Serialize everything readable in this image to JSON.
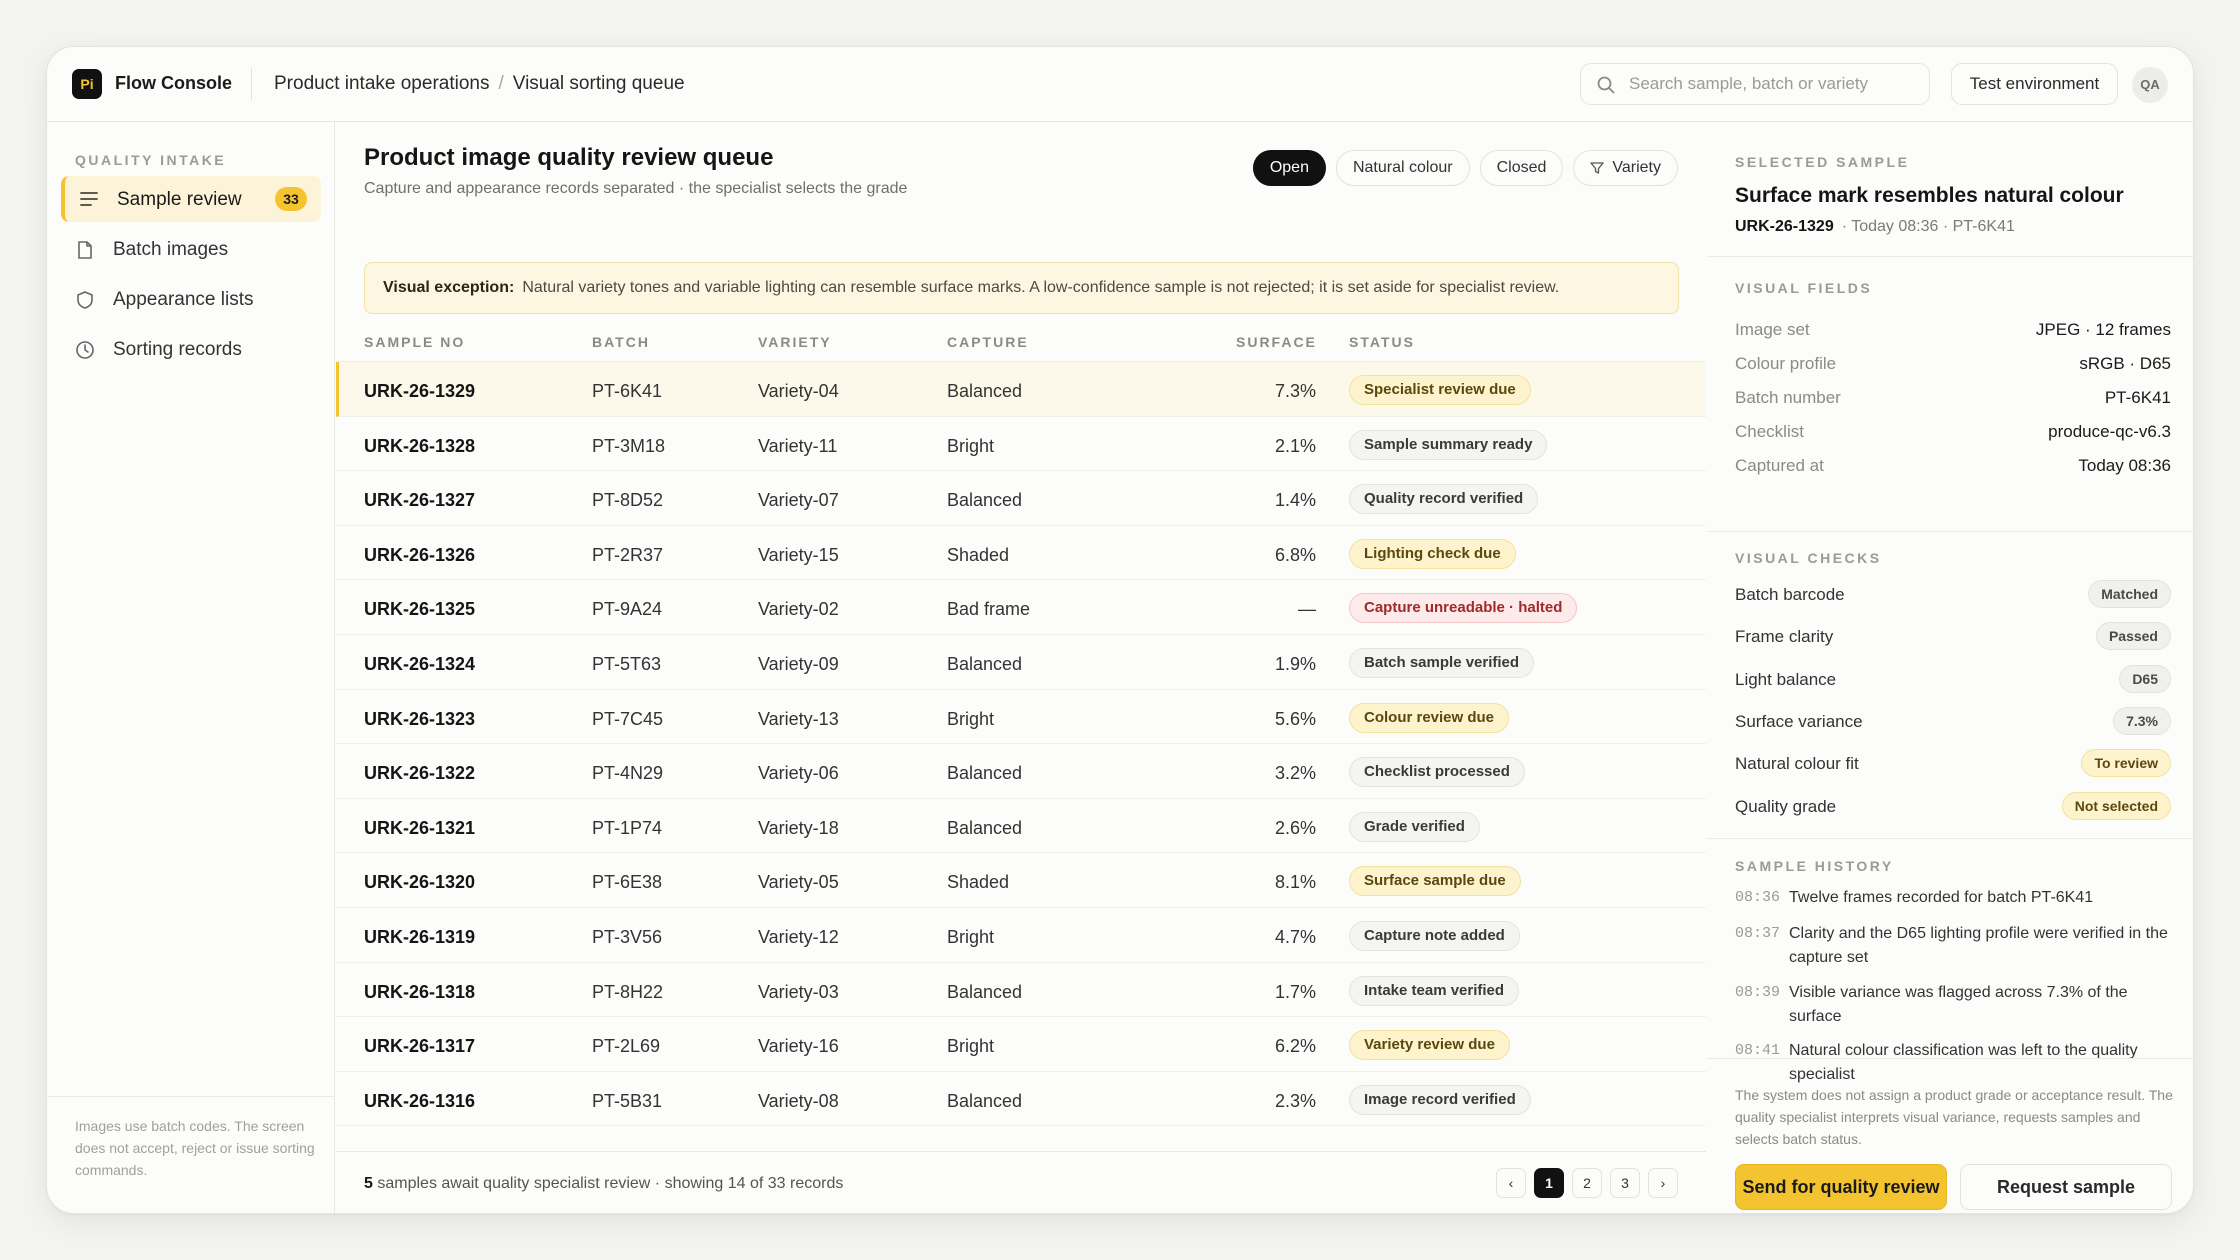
{
  "header": {
    "logo": "Pi",
    "app_title": "Flow Console",
    "breadcrumb": [
      "Product intake operations",
      "Visual sorting queue"
    ],
    "search_placeholder": "Search sample, batch or variety",
    "env_label": "Test environment",
    "avatar": "QA"
  },
  "sidebar": {
    "section": "QUALITY INTAKE",
    "items": [
      {
        "label": "Sample review",
        "badge": "33",
        "icon": "list-icon"
      },
      {
        "label": "Batch images",
        "icon": "document-icon"
      },
      {
        "label": "Appearance lists",
        "icon": "shield-icon"
      },
      {
        "label": "Sorting records",
        "icon": "clock-icon"
      }
    ],
    "note": "Images use batch codes. The screen does not accept, reject or issue sorting commands."
  },
  "main": {
    "title": "Product image quality review queue",
    "subtitle": "Capture and appearance records separated · the specialist selects the grade",
    "filters": [
      "Open",
      "Natural colour",
      "Closed",
      "Variety"
    ],
    "alert_label": "Visual exception:",
    "alert_text": "Natural variety tones and variable lighting can resemble surface marks. A low-confidence sample is not rejected; it is set aside for specialist review.",
    "columns": [
      "SAMPLE NO",
      "BATCH",
      "VARIETY",
      "CAPTURE",
      "SURFACE",
      "STATUS"
    ],
    "rows": [
      {
        "id": "URK-26-1329",
        "batch": "PT-6K41",
        "variety": "Variety-04",
        "capture": "Balanced",
        "surface": "7.3%",
        "status": "Specialist review due",
        "tone": "warn"
      },
      {
        "id": "URK-26-1328",
        "batch": "PT-3M18",
        "variety": "Variety-11",
        "capture": "Bright",
        "surface": "2.1%",
        "status": "Sample summary ready",
        "tone": "neutral"
      },
      {
        "id": "URK-26-1327",
        "batch": "PT-8D52",
        "variety": "Variety-07",
        "capture": "Balanced",
        "surface": "1.4%",
        "status": "Quality record verified",
        "tone": "neutral"
      },
      {
        "id": "URK-26-1326",
        "batch": "PT-2R37",
        "variety": "Variety-15",
        "capture": "Shaded",
        "surface": "6.8%",
        "status": "Lighting check due",
        "tone": "warn"
      },
      {
        "id": "URK-26-1325",
        "batch": "PT-9A24",
        "variety": "Variety-02",
        "capture": "Bad frame",
        "surface": "—",
        "status": "Capture unreadable · halted",
        "tone": "err"
      },
      {
        "id": "URK-26-1324",
        "batch": "PT-5T63",
        "variety": "Variety-09",
        "capture": "Balanced",
        "surface": "1.9%",
        "status": "Batch sample verified",
        "tone": "neutral"
      },
      {
        "id": "URK-26-1323",
        "batch": "PT-7C45",
        "variety": "Variety-13",
        "capture": "Bright",
        "surface": "5.6%",
        "status": "Colour review due",
        "tone": "warn"
      },
      {
        "id": "URK-26-1322",
        "batch": "PT-4N29",
        "variety": "Variety-06",
        "capture": "Balanced",
        "surface": "3.2%",
        "status": "Checklist processed",
        "tone": "neutral"
      },
      {
        "id": "URK-26-1321",
        "batch": "PT-1P74",
        "variety": "Variety-18",
        "capture": "Balanced",
        "surface": "2.6%",
        "status": "Grade verified",
        "tone": "neutral"
      },
      {
        "id": "URK-26-1320",
        "batch": "PT-6E38",
        "variety": "Variety-05",
        "capture": "Shaded",
        "surface": "8.1%",
        "status": "Surface sample due",
        "tone": "warn"
      },
      {
        "id": "URK-26-1319",
        "batch": "PT-3V56",
        "variety": "Variety-12",
        "capture": "Bright",
        "surface": "4.7%",
        "status": "Capture note added",
        "tone": "neutral"
      },
      {
        "id": "URK-26-1318",
        "batch": "PT-8H22",
        "variety": "Variety-03",
        "capture": "Balanced",
        "surface": "1.7%",
        "status": "Intake team verified",
        "tone": "neutral"
      },
      {
        "id": "URK-26-1317",
        "batch": "PT-2L69",
        "variety": "Variety-16",
        "capture": "Bright",
        "surface": "6.2%",
        "status": "Variety review due",
        "tone": "warn"
      },
      {
        "id": "URK-26-1316",
        "batch": "PT-5B31",
        "variety": "Variety-08",
        "capture": "Balanced",
        "surface": "2.3%",
        "status": "Image record verified",
        "tone": "neutral"
      }
    ],
    "footer_count": "5",
    "footer_text": "samples await quality specialist review · showing 14 of 33 records",
    "pages": [
      "1",
      "2",
      "3"
    ],
    "prev": "‹",
    "next": "›"
  },
  "panel": {
    "selected_section": "SELECTED SAMPLE",
    "selected_title": "Surface mark resembles natural colour",
    "selected_id": "URK-26-1329",
    "selected_meta": "· Today 08:36 · PT-6K41",
    "fields_section": "VISUAL FIELDS",
    "fields": [
      {
        "k": "Image set",
        "v": "JPEG · 12 frames"
      },
      {
        "k": "Colour profile",
        "v": "sRGB · D65"
      },
      {
        "k": "Batch number",
        "v": "PT-6K41"
      },
      {
        "k": "Checklist",
        "v": "produce-qc-v6.3"
      },
      {
        "k": "Captured at",
        "v": "Today 08:36"
      }
    ],
    "checks_section": "VISUAL CHECKS",
    "checks": [
      {
        "k": "Batch barcode",
        "v": "Matched",
        "tone": "neutral"
      },
      {
        "k": "Frame clarity",
        "v": "Passed",
        "tone": "neutral"
      },
      {
        "k": "Light balance",
        "v": "D65",
        "tone": "neutral"
      },
      {
        "k": "Surface variance",
        "v": "7.3%",
        "tone": "neutral"
      },
      {
        "k": "Natural colour fit",
        "v": "To review",
        "tone": "warn"
      },
      {
        "k": "Quality grade",
        "v": "Not selected",
        "tone": "warn"
      }
    ],
    "history_section": "SAMPLE HISTORY",
    "history": [
      {
        "t": "08:36",
        "d": "Twelve frames recorded for batch PT-6K41"
      },
      {
        "t": "08:37",
        "d": "Clarity and the D65 lighting profile were verified in the capture set"
      },
      {
        "t": "08:39",
        "d": "Visible variance was flagged across 7.3% of the surface"
      },
      {
        "t": "08:41",
        "d": "Natural colour classification was left to the quality specialist"
      }
    ],
    "note": "The system does not assign a product grade or acceptance result. The quality specialist interprets visual variance, requests samples and selects batch status.",
    "primary_button": "Send for quality review",
    "secondary_button": "Request sample"
  }
}
